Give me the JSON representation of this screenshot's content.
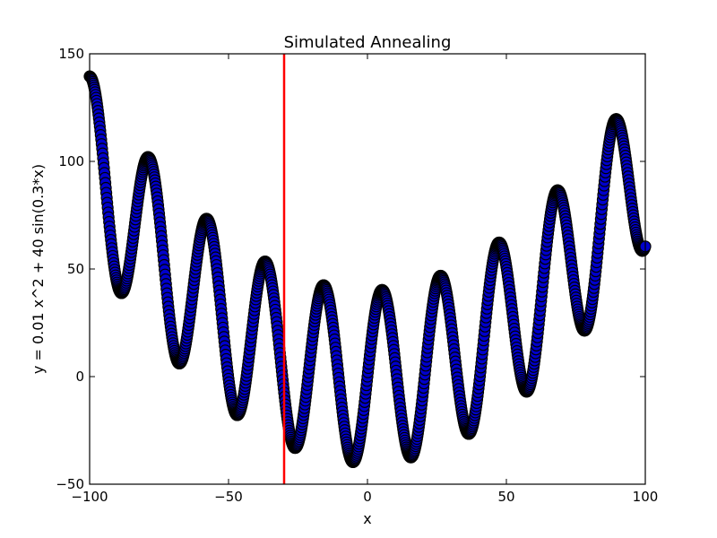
{
  "chart_data": {
    "type": "scatter",
    "title": "Simulated Annealing",
    "xlabel": "x",
    "ylabel": "y = 0.01 x^2 + 40 sin(0.3*x)",
    "xlim": [
      -100,
      100
    ],
    "ylim": [
      -50,
      150
    ],
    "xticks": [
      -100,
      -50,
      0,
      50,
      100
    ],
    "yticks": [
      -50,
      0,
      50,
      100,
      150
    ],
    "xtick_labels": [
      "−100",
      "−50",
      "0",
      "50",
      "100"
    ],
    "ytick_labels": [
      "−50",
      "0",
      "50",
      "100",
      "150"
    ],
    "grid": false,
    "legend": "none",
    "series": [
      {
        "function": "0.01*x^2 + 40*sin(0.3*x)",
        "x_range": [
          -100,
          100
        ],
        "marker": "circle",
        "fill_color": "#0000cc",
        "edge_color": "#000000"
      }
    ],
    "vline": {
      "x": -30,
      "color": "#ff0000"
    }
  }
}
